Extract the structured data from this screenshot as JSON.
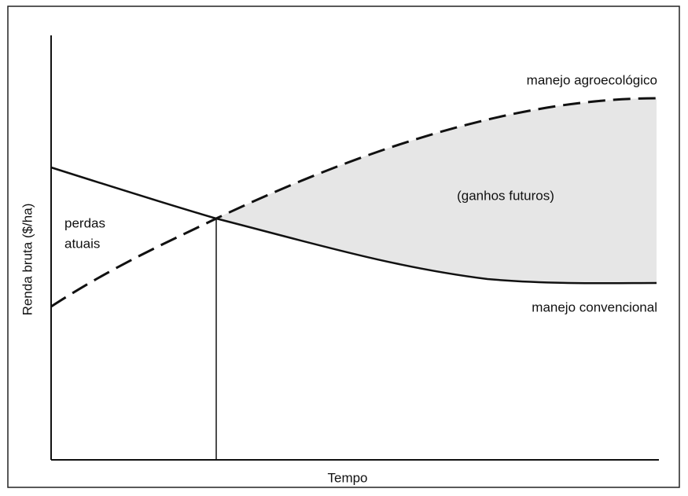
{
  "diagram": {
    "y_axis_label": "Renda bruta ($/ha)",
    "x_axis_label": "Tempo",
    "curves": [
      {
        "label": "manejo agroecológico"
      },
      {
        "label": "manejo convencional"
      }
    ],
    "regions": [
      {
        "label": "(ganhos futuros)"
      },
      {
        "label_lines": [
          "perdas",
          "atuais"
        ]
      }
    ]
  }
}
